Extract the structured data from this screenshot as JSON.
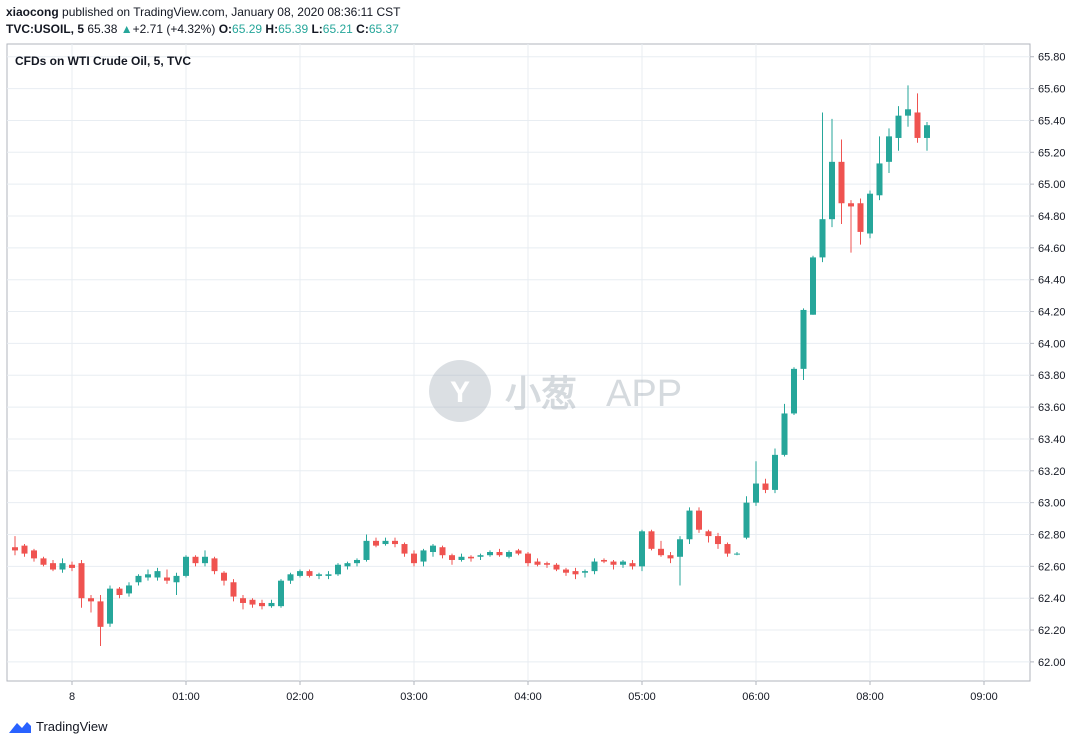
{
  "header": {
    "user": "xiaocong",
    "published_text": "published on TradingView.com, January 08, 2020 08:36:11 CST",
    "symbol": "TVC:USOIL, 5",
    "last_price": "65.38",
    "change_arrow": "▲",
    "change": "+2.71 (+4.32%)",
    "o_label": "O:",
    "o_value": "65.29",
    "h_label": "H:",
    "h_value": "65.39",
    "l_label": "L:",
    "l_value": "65.21",
    "c_label": "C:",
    "c_value": "65.37"
  },
  "footer": {
    "brand": "TradingView"
  },
  "watermark": {
    "text_cn": "小葱",
    "text_app": "APP"
  },
  "colors": {
    "up": "#26a69a",
    "down": "#ef5350",
    "grid": "#e8edf2",
    "axis_text": "#131722"
  },
  "chart_data": {
    "type": "candlestick",
    "title": "CFDs on WTI Crude Oil, 5, TVC",
    "ylim": [
      61.88,
      65.88
    ],
    "y_ticks": [
      "62.00",
      "62.20",
      "62.40",
      "62.60",
      "62.80",
      "63.00",
      "63.20",
      "63.40",
      "63.60",
      "63.80",
      "64.00",
      "64.20",
      "64.40",
      "64.60",
      "64.80",
      "65.00",
      "65.20",
      "65.40",
      "65.60",
      "65.80"
    ],
    "x_ticks": [
      {
        "label": "8",
        "bar": 6
      },
      {
        "label": "01:00",
        "bar": 18
      },
      {
        "label": "02:00",
        "bar": 30
      },
      {
        "label": "03:00",
        "bar": 42
      },
      {
        "label": "04:00",
        "bar": 54
      },
      {
        "label": "05:00",
        "bar": 66
      },
      {
        "label": "06:00",
        "bar": 78
      },
      {
        "label": "08:00",
        "bar": 90
      },
      {
        "label": "09:00",
        "bar": 102
      }
    ],
    "grid": true,
    "candles": [
      [
        62.72,
        62.79,
        62.67,
        62.7
      ],
      [
        62.73,
        62.74,
        62.66,
        62.68
      ],
      [
        62.7,
        62.71,
        62.63,
        62.65
      ],
      [
        62.65,
        62.66,
        62.6,
        62.61
      ],
      [
        62.62,
        62.64,
        62.57,
        62.58
      ],
      [
        62.58,
        62.65,
        62.56,
        62.62
      ],
      [
        62.61,
        62.63,
        62.57,
        62.59
      ],
      [
        62.62,
        62.64,
        62.34,
        62.4
      ],
      [
        62.4,
        62.42,
        62.31,
        62.38
      ],
      [
        62.38,
        62.42,
        62.1,
        62.22
      ],
      [
        62.24,
        62.48,
        62.22,
        62.46
      ],
      [
        62.46,
        62.47,
        62.4,
        62.42
      ],
      [
        62.43,
        62.5,
        62.41,
        62.48
      ],
      [
        62.5,
        62.55,
        62.48,
        62.54
      ],
      [
        62.53,
        62.58,
        62.51,
        62.55
      ],
      [
        62.53,
        62.59,
        62.51,
        62.57
      ],
      [
        62.53,
        62.58,
        62.49,
        62.51
      ],
      [
        62.5,
        62.56,
        62.42,
        62.54
      ],
      [
        62.54,
        62.67,
        62.53,
        62.66
      ],
      [
        62.66,
        62.67,
        62.6,
        62.62
      ],
      [
        62.62,
        62.7,
        62.6,
        62.66
      ],
      [
        62.65,
        62.66,
        62.55,
        62.57
      ],
      [
        62.56,
        62.57,
        62.48,
        62.51
      ],
      [
        62.5,
        62.52,
        62.38,
        62.41
      ],
      [
        62.4,
        62.42,
        62.33,
        62.37
      ],
      [
        62.39,
        62.4,
        62.34,
        62.36
      ],
      [
        62.37,
        62.39,
        62.33,
        62.35
      ],
      [
        62.35,
        62.39,
        62.34,
        62.37
      ],
      [
        62.35,
        62.52,
        62.34,
        62.51
      ],
      [
        62.51,
        62.56,
        62.49,
        62.55
      ],
      [
        62.54,
        62.58,
        62.53,
        62.57
      ],
      [
        62.57,
        62.58,
        62.53,
        62.54
      ],
      [
        62.54,
        62.56,
        62.52,
        62.55
      ],
      [
        62.54,
        62.57,
        62.52,
        62.55
      ],
      [
        62.55,
        62.62,
        62.54,
        62.61
      ],
      [
        62.6,
        62.63,
        62.58,
        62.62
      ],
      [
        62.62,
        62.65,
        62.6,
        62.64
      ],
      [
        62.64,
        62.8,
        62.63,
        62.76
      ],
      [
        62.76,
        62.78,
        62.72,
        62.73
      ],
      [
        62.74,
        62.78,
        62.73,
        62.76
      ],
      [
        62.76,
        62.78,
        62.72,
        62.74
      ],
      [
        62.74,
        62.75,
        62.66,
        62.68
      ],
      [
        62.68,
        62.7,
        62.6,
        62.62
      ],
      [
        62.63,
        62.71,
        62.6,
        62.7
      ],
      [
        62.69,
        62.74,
        62.66,
        62.73
      ],
      [
        62.72,
        62.73,
        62.65,
        62.67
      ],
      [
        62.67,
        62.68,
        62.61,
        62.64
      ],
      [
        62.64,
        62.68,
        62.63,
        62.66
      ],
      [
        62.66,
        62.67,
        62.63,
        62.65
      ],
      [
        62.66,
        62.68,
        62.64,
        62.67
      ],
      [
        62.67,
        62.7,
        62.66,
        62.69
      ],
      [
        62.69,
        62.71,
        62.66,
        62.67
      ],
      [
        62.66,
        62.7,
        62.65,
        62.69
      ],
      [
        62.7,
        62.71,
        62.67,
        62.68
      ],
      [
        62.68,
        62.69,
        62.6,
        62.62
      ],
      [
        62.63,
        62.65,
        62.6,
        62.61
      ],
      [
        62.62,
        62.63,
        62.59,
        62.61
      ],
      [
        62.61,
        62.62,
        62.57,
        62.58
      ],
      [
        62.58,
        62.59,
        62.54,
        62.56
      ],
      [
        62.57,
        62.59,
        62.52,
        62.55
      ],
      [
        62.56,
        62.58,
        62.53,
        62.57
      ],
      [
        62.57,
        62.65,
        62.55,
        62.63
      ],
      [
        62.64,
        62.65,
        62.62,
        62.63
      ],
      [
        62.63,
        62.64,
        62.58,
        62.61
      ],
      [
        62.61,
        62.64,
        62.59,
        62.63
      ],
      [
        62.62,
        62.64,
        62.58,
        62.6
      ],
      [
        62.6,
        62.83,
        62.57,
        62.82
      ],
      [
        62.82,
        62.83,
        62.7,
        62.71
      ],
      [
        62.71,
        62.76,
        62.66,
        62.67
      ],
      [
        62.67,
        62.69,
        62.62,
        62.65
      ],
      [
        62.66,
        62.79,
        62.48,
        62.77
      ],
      [
        62.77,
        62.97,
        62.74,
        62.95
      ],
      [
        62.95,
        62.97,
        62.81,
        62.83
      ],
      [
        62.82,
        62.83,
        62.75,
        62.79
      ],
      [
        62.79,
        62.81,
        62.71,
        62.74
      ],
      [
        62.74,
        62.75,
        62.66,
        62.68
      ],
      [
        62.68,
        62.69,
        62.67,
        62.68
      ],
      [
        62.78,
        63.04,
        62.77,
        63.0
      ],
      [
        63.0,
        63.26,
        62.98,
        63.12
      ],
      [
        63.12,
        63.15,
        63.06,
        63.08
      ],
      [
        63.08,
        63.34,
        63.06,
        63.3
      ],
      [
        63.3,
        63.62,
        63.29,
        63.56
      ],
      [
        63.56,
        63.85,
        63.55,
        63.84
      ],
      [
        63.84,
        64.22,
        63.77,
        64.21
      ],
      [
        64.18,
        64.55,
        64.18,
        64.54
      ],
      [
        64.54,
        65.45,
        64.51,
        64.78
      ],
      [
        64.78,
        65.41,
        64.73,
        65.14
      ],
      [
        65.14,
        65.28,
        64.75,
        64.88
      ],
      [
        64.88,
        64.9,
        64.57,
        64.86
      ],
      [
        64.88,
        64.91,
        64.62,
        64.7
      ],
      [
        64.69,
        64.96,
        64.66,
        64.94
      ],
      [
        64.93,
        65.3,
        64.9,
        65.13
      ],
      [
        65.14,
        65.35,
        65.07,
        65.3
      ],
      [
        65.29,
        65.49,
        65.21,
        65.43
      ],
      [
        65.43,
        65.62,
        65.36,
        65.47
      ],
      [
        65.45,
        65.57,
        65.26,
        65.29
      ],
      [
        65.29,
        65.39,
        65.21,
        65.37
      ]
    ]
  }
}
